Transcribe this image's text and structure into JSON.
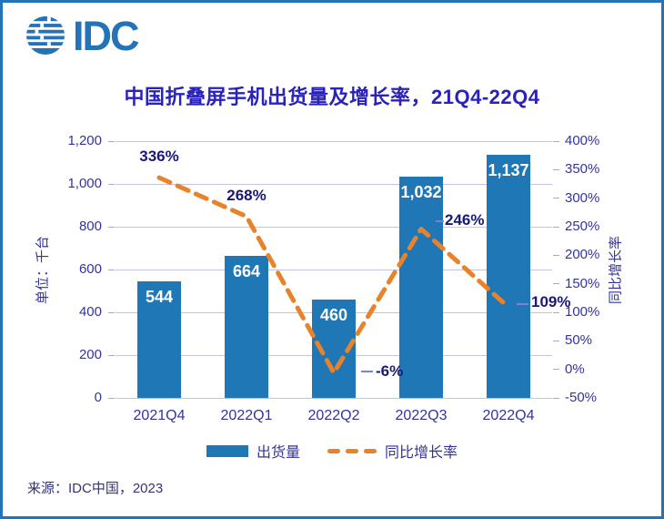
{
  "logo": {
    "text": "IDC"
  },
  "source": "来源：IDC中国，2023",
  "colors": {
    "brand": "#2473B9",
    "bar": "#2077B5",
    "line": "#E8822B",
    "title_text": "#2A22BC",
    "axis_text": "#34349A",
    "data_label_text": "#191975",
    "bar_label_text": "#FFFFFF",
    "grid": "#C3C3E0",
    "tick": "#A8A8D0",
    "leader": "#8080CC"
  },
  "chart_data": {
    "type": "bar+line combo",
    "title": "中国折叠屏手机出货量及增长率，21Q4-22Q4",
    "categories": [
      "2021Q4",
      "2022Q1",
      "2022Q2",
      "2022Q3",
      "2022Q4"
    ],
    "series": [
      {
        "name": "出货量",
        "type": "bar",
        "axis": "left",
        "values": [
          544,
          664,
          460,
          1032,
          1137
        ],
        "value_labels": [
          "544",
          "664",
          "460",
          "1,032",
          "1,137"
        ]
      },
      {
        "name": "同比增长率",
        "type": "line",
        "style": "dashed",
        "axis": "right",
        "values": [
          336,
          268,
          -6,
          246,
          109
        ],
        "value_labels": [
          "336%",
          "268%",
          "-6%",
          "246%",
          "109%"
        ]
      }
    ],
    "left_axis": {
      "title": "单位：千台",
      "min": 0,
      "max": 1200,
      "step": 200,
      "tick_labels": [
        "0",
        "200",
        "400",
        "600",
        "800",
        "1,000",
        "1,200"
      ]
    },
    "right_axis": {
      "title": "同比增长率",
      "min": -50,
      "max": 400,
      "step": 50,
      "tick_labels": [
        "-50%",
        "0%",
        "50%",
        "100%",
        "150%",
        "200%",
        "250%",
        "300%",
        "350%",
        "400%"
      ]
    },
    "grid": true,
    "legend_position": "bottom"
  }
}
